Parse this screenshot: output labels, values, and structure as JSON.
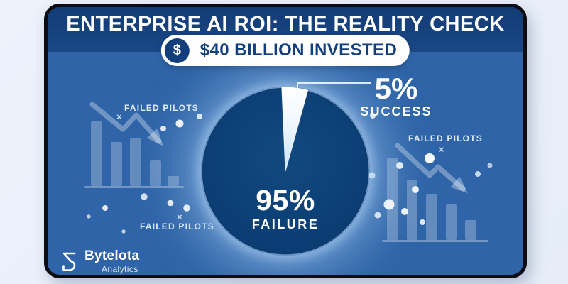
{
  "header": {
    "title": "ENTERPRISE AI ROI: THE REALITY CHECK"
  },
  "badge": {
    "icon_glyph": "$",
    "label": "$40 BILLION INVESTED"
  },
  "chart_data": {
    "type": "pie",
    "title": "ENTERPRISE AI ROI: THE REALITY CHECK",
    "subtitle": "$40 BILLION INVESTED",
    "slices": [
      {
        "label": "FAILURE",
        "value": 95,
        "display": "95%",
        "color": "#0c4076"
      },
      {
        "label": "SUCCESS",
        "value": 5,
        "display": "5%",
        "color": "#ffffff"
      }
    ],
    "slice_start_deg": -2.5,
    "legend_position": "none",
    "annotations": [
      "FAILED PILOTS",
      "FAILED PILOTS",
      "FAILED PILOTS"
    ]
  },
  "pie_labels": {
    "failure_pct": "95%",
    "failure_label": "FAILURE",
    "success_pct": "5%",
    "success_label": "SUCCESS"
  },
  "decor": {
    "left_top_label": "FAILED PILOTS",
    "left_bottom_label": "FAILED PILOTS",
    "right_label": "FAILED PILOTS",
    "x_mark": "×"
  },
  "footer": {
    "brand": "Bytelota",
    "brand_sub": "Analytics"
  },
  "colors": {
    "outer_bg": "#e9effa",
    "card_border": "#0c0c14",
    "header_bg": "#16427f",
    "body_bg": "#3f76b8",
    "pie_dark": "#0c4076",
    "accent_navy": "#123e7b",
    "white": "#ffffff"
  }
}
